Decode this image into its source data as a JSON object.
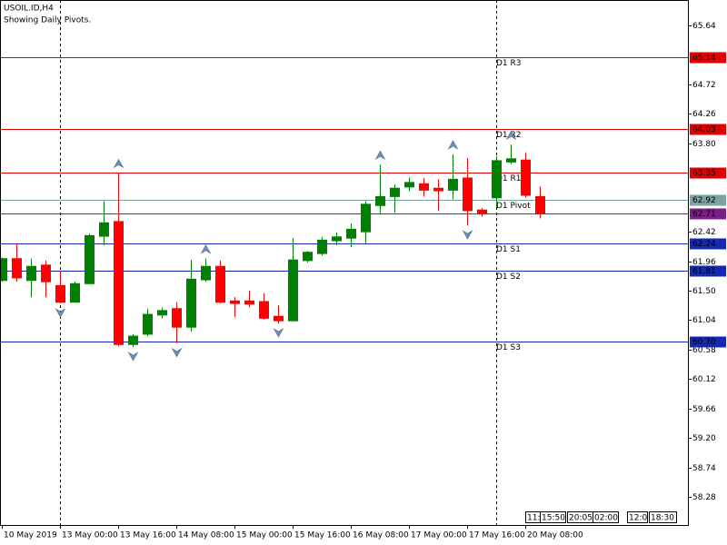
{
  "chart_data": {
    "type": "candlestick",
    "symbol": "USOIL.ID,H4",
    "subtitle": "Showing Daily Pivots.",
    "categories": [
      "10 May 2019",
      null,
      null,
      null,
      "13 May 00:00",
      null,
      null,
      null,
      "13 May 16:00",
      null,
      null,
      null,
      "14 May 08:00",
      null,
      null,
      null,
      "15 May 00:00",
      null,
      null,
      null,
      "15 May 16:00",
      null,
      null,
      null,
      "16 May 08:00",
      null,
      null,
      null,
      "17 May 00:00",
      null,
      null,
      null,
      "17 May 16:00",
      null,
      null,
      null,
      "20 May 08:00",
      null
    ],
    "open": [
      61.66,
      62.0,
      61.66,
      61.9,
      61.58,
      61.32,
      61.61,
      62.35,
      62.58,
      60.66,
      60.82,
      61.12,
      61.22,
      60.93,
      61.67,
      61.88,
      61.34,
      61.34,
      61.33,
      61.1,
      61.03,
      61.97,
      62.08,
      62.28,
      62.32,
      62.42,
      62.83,
      62.97,
      63.12,
      63.17,
      63.1,
      63.07,
      63.26,
      62.76,
      62.95,
      63.51,
      63.54,
      62.97
    ],
    "high": [
      62.02,
      62.24,
      62.0,
      61.97,
      61.81,
      61.64,
      62.39,
      62.9,
      63.34,
      60.82,
      61.22,
      61.24,
      61.32,
      61.98,
      62.0,
      61.97,
      61.4,
      61.5,
      61.46,
      61.27,
      62.32,
      62.12,
      62.34,
      62.41,
      62.55,
      62.9,
      63.47,
      63.16,
      63.27,
      63.26,
      63.24,
      63.63,
      63.57,
      62.79,
      63.6,
      63.78,
      63.65,
      63.13
    ],
    "low": [
      61.64,
      61.64,
      61.4,
      61.4,
      61.3,
      61.31,
      61.6,
      62.21,
      60.63,
      60.62,
      60.79,
      61.07,
      60.68,
      60.86,
      61.64,
      61.3,
      61.09,
      61.24,
      61.05,
      60.99,
      61.02,
      61.94,
      62.05,
      62.21,
      62.18,
      62.24,
      62.69,
      62.72,
      63.05,
      62.97,
      62.75,
      62.93,
      62.52,
      62.66,
      62.8,
      63.48,
      62.95,
      62.63
    ],
    "close": [
      62.0,
      61.7,
      61.88,
      61.64,
      61.32,
      61.61,
      62.36,
      62.56,
      60.66,
      60.79,
      61.13,
      61.19,
      60.93,
      61.68,
      61.88,
      61.32,
      61.3,
      61.29,
      61.07,
      61.03,
      61.98,
      62.1,
      62.29,
      62.34,
      62.46,
      62.85,
      62.97,
      63.1,
      63.19,
      63.07,
      63.06,
      63.24,
      62.75,
      62.7,
      63.53,
      63.56,
      62.99,
      62.71
    ],
    "up_color": "#008000",
    "down_color": "#ff0000",
    "ylim": [
      57.84,
      66.04
    ],
    "yticks": [
      65.64,
      64.72,
      64.26,
      {
        "value": 63.8,
        "label": "63.80"
      },
      62.42,
      61.96,
      {
        "value": 61.5,
        "label": "61.50"
      },
      61.04,
      60.58,
      60.12,
      59.66,
      {
        "value": 59.2,
        "label": "59.20"
      },
      58.74,
      58.28
    ],
    "levels": [
      {
        "name": "D1 R3",
        "value": 65.14,
        "label": "65.14",
        "color": "#e00000"
      },
      {
        "name": "D1 R2",
        "value": 64.03,
        "label": "64.03",
        "color": "#e00000"
      },
      {
        "name": "D1 R1",
        "value": 63.35,
        "label": "63.35",
        "color": "#e00000"
      },
      {
        "name": "D1 Pivot",
        "value": 62.92,
        "label": "62.92",
        "color": "#7aa3a3"
      },
      {
        "name": "D1 S1",
        "value": 62.24,
        "label": "62.24",
        "color": "#1428b4"
      },
      {
        "name": "D1 S2",
        "value": 61.81,
        "label": "61.81",
        "color": "#1428b4"
      },
      {
        "name": "D1 S3",
        "value": 60.7,
        "label": "60.70",
        "color": "#1428b4"
      }
    ],
    "current_price": {
      "value": 62.71,
      "label": "62.71",
      "color": "#7a1f86"
    },
    "time_boxes": [
      "11:",
      "15:50",
      "20:05",
      "02:00",
      "12:0",
      "18:30"
    ]
  }
}
